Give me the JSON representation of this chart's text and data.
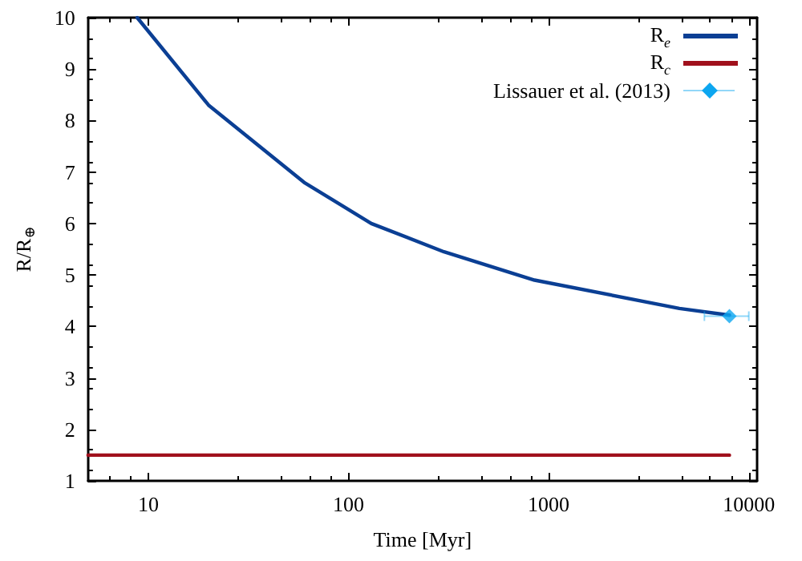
{
  "chart_data": {
    "type": "line",
    "xlabel": "Time [Myr]",
    "ylabel": "R/R$_{⊕}$",
    "log": "x",
    "xlim": [
      5,
      11000
    ],
    "xticks": [
      10,
      100,
      1000,
      10000
    ],
    "ylim": [
      1,
      10
    ],
    "yticks": [
      1,
      2,
      3,
      4,
      5,
      6,
      7,
      8,
      9,
      10
    ],
    "grid": false,
    "legend": "top right",
    "line_style": "solid",
    "series": [
      {
        "name": "R$_{e}$",
        "color": "#0b3f94",
        "x": [
          8.8,
          20,
          60,
          130,
          300,
          850,
          4500,
          8000
        ],
        "values": [
          10,
          8.3,
          6.8,
          6.0,
          5.45,
          4.9,
          4.35,
          4.22
        ],
        "marker": "none"
      },
      {
        "name": "R$_{c}$",
        "color": "#a0101c",
        "x": [
          5,
          8000
        ],
        "values": [
          1.5,
          1.5
        ],
        "marker": "none"
      },
      {
        "name": "Lissauer et al. (2013)",
        "type": "scatter",
        "color": "#0ca6f0",
        "x": [
          8000
        ],
        "values": [
          4.2
        ],
        "xerrors": [
          [
            6000,
            10000
          ]
        ],
        "marker": "diamond"
      }
    ]
  }
}
